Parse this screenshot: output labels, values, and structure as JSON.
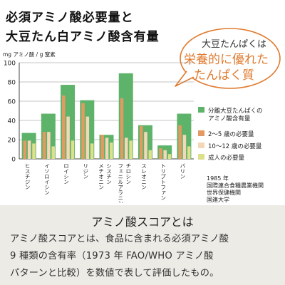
{
  "heading": {
    "line1": "必須アミノ酸必要量と",
    "line2": "大豆たん白アミノ酸含有量"
  },
  "callout": {
    "line1": "大豆たんぱくは",
    "line2": "栄養的に優れた",
    "line3": "たんぱく質"
  },
  "source": {
    "line1": "1985 年",
    "line2": "国際連合食糧農業機関",
    "line3": "世界保健機関",
    "line4": "国連大学"
  },
  "info": {
    "title": "アミノ酸スコアとは",
    "line1": "アミノ酸スコアとは、食品に含まれる必須アミノ酸",
    "line2": "9 種類の含有率（1973 年 FAO/WHO アミノ酸",
    "line3": "パターンと比較）を数値で表して評価したもの。"
  },
  "colors": {
    "soy": "#5db36a",
    "age2_5": "#e39a62",
    "age10_12": "#f3d8b8",
    "adult": "#dde08a",
    "accent": "#e07a2e"
  },
  "chart_data": {
    "type": "bar",
    "ylabel": "mg アミノ酸 / g 窒素",
    "ylim": [
      0,
      100
    ],
    "yticks": [
      0,
      20,
      40,
      60,
      80,
      100
    ],
    "categories": [
      [
        "ヒスチジン"
      ],
      [
        "イソロイシン"
      ],
      [
        "ロイシン"
      ],
      [
        "リジン"
      ],
      [
        "メチオニン",
        "シスチン"
      ],
      [
        "フェニルアラニン",
        "チロシン"
      ],
      [
        "スレオニン"
      ],
      [
        "トリプトファン"
      ],
      [
        "バリン"
      ]
    ],
    "series": [
      {
        "name": "分離大豆たんぱくの|アミノ酸含有量",
        "color": "#5db36a",
        "values": [
          27,
          47,
          77,
          61,
          25,
          89,
          35,
          14,
          47
        ]
      },
      {
        "name": "2～5 歳の必要量",
        "color": "#e39a62",
        "values": [
          19,
          28,
          66,
          58,
          25,
          63,
          34,
          11,
          35
        ]
      },
      {
        "name": "10～12 歳の必要量",
        "color": "#f3d8b8",
        "values": [
          19,
          28,
          44,
          44,
          22,
          22,
          28,
          9,
          25
        ]
      },
      {
        "name": "成人の必要量",
        "color": "#dde08a",
        "values": [
          16,
          13,
          19,
          16,
          17,
          19,
          9,
          5,
          13
        ]
      }
    ]
  }
}
